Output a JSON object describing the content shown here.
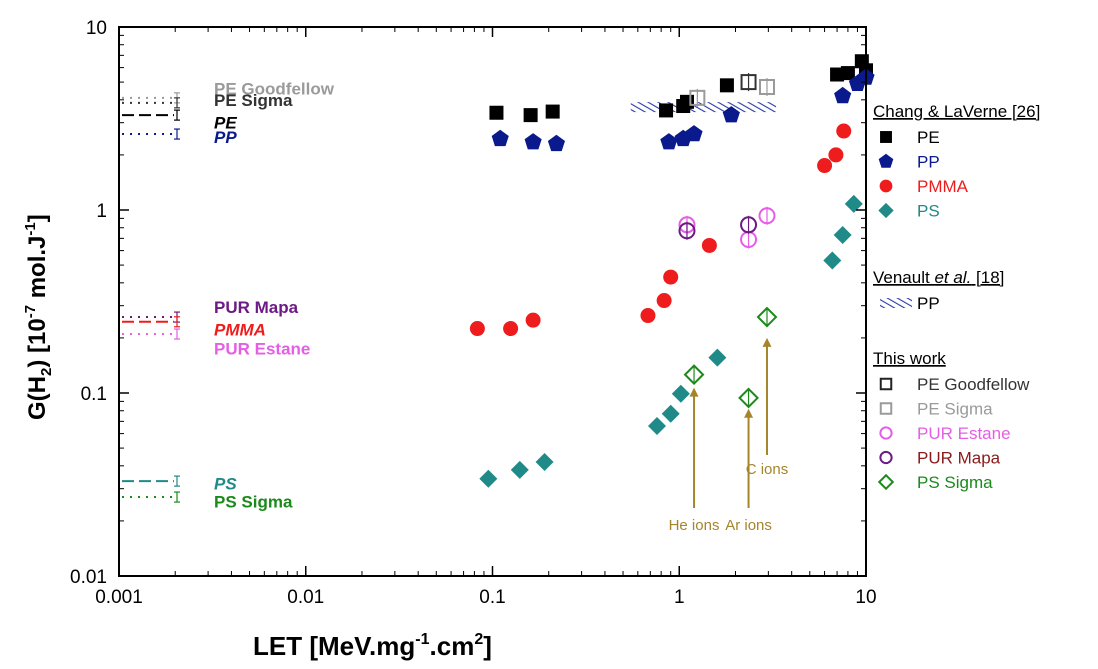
{
  "chart_data": {
    "type": "scatter",
    "x_scale": "log",
    "y_scale": "log",
    "xlim": [
      0.001,
      10
    ],
    "ylim": [
      0.01,
      10
    ],
    "x_ticks": [
      "0.001",
      "0.01",
      "0.1",
      "1",
      "10"
    ],
    "y_ticks": [
      "0.01",
      "0.1",
      "1",
      "10"
    ],
    "xlabel": {
      "main": "LET [MeV.mg",
      "sup1": "-1",
      "mid": ".cm",
      "sup2": "2",
      "end": "]"
    },
    "ylabel": {
      "pre": "G(H",
      "sub": "2",
      "mid": ") [10",
      "sup1": "-7",
      "post": " mol.J",
      "sup2": "-1",
      "end": "]"
    },
    "colors": {
      "PE": "#000000",
      "PP": "#0a1a8c",
      "PMMA": "#ee1c1c",
      "PS": "#1f8a87",
      "PE_Goodfellow": "#555555",
      "PE_Sigma": "#9a9a9a",
      "PUR_Estane": "#e55ee5",
      "PUR_Mapa": "#6d1a85",
      "PS_Sigma": "#1a8a1a",
      "ion": "#a5852c",
      "venault": "#2a3aa8"
    },
    "legend_groups": [
      {
        "title": "Chang & LaVerne [26]",
        "items": [
          {
            "label": "PE",
            "marker": "square-filled",
            "color": "#000000",
            "text_color": "#000000"
          },
          {
            "label": "PP",
            "marker": "pentagon-filled",
            "color": "#0a1a8c",
            "text_color": "#0a1a8c"
          },
          {
            "label": "PMMA",
            "marker": "circle-filled",
            "color": "#ee1c1c",
            "text_color": "#ee1c1c"
          },
          {
            "label": "PS",
            "marker": "diamond-filled",
            "color": "#1f8a87",
            "text_color": "#1f8a87"
          }
        ]
      },
      {
        "title_pre": "Venault ",
        "title_ital": "et al.",
        "title_post": " [18]",
        "items": [
          {
            "label": "PP",
            "marker": "hatch",
            "color": "#2a3aa8",
            "text_color": "#000000"
          }
        ]
      },
      {
        "title": "This work",
        "items": [
          {
            "label": "PE Goodfellow",
            "marker": "square-open",
            "color": "#222222",
            "text_color": "#333333"
          },
          {
            "label": "PE Sigma",
            "marker": "square-open",
            "color": "#9a9a9a",
            "text_color": "#9a9a9a"
          },
          {
            "label": "PUR Estane",
            "marker": "circle-open",
            "color": "#e55ee5",
            "text_color": "#e55ee5"
          },
          {
            "label": "PUR Mapa",
            "marker": "circle-open",
            "color": "#6d1a85",
            "text_color": "#8b1a1a"
          },
          {
            "label": "PS Sigma",
            "marker": "diamond-open",
            "color": "#1a8a1a",
            "text_color": "#1a8a1a"
          }
        ]
      }
    ],
    "series": [
      {
        "name": "PE",
        "marker": "square-filled",
        "color": "#000000",
        "x": [
          0.105,
          0.16,
          0.21,
          0.85,
          1.05,
          1.1,
          1.8,
          7.0,
          8.0,
          9.5,
          10.0
        ],
        "y": [
          3.4,
          3.3,
          3.45,
          3.5,
          3.7,
          3.9,
          4.8,
          5.5,
          5.6,
          6.5,
          5.8
        ]
      },
      {
        "name": "PP",
        "marker": "pentagon-filled",
        "color": "#0a1a8c",
        "x": [
          0.11,
          0.165,
          0.22,
          0.88,
          1.05,
          1.2,
          1.9,
          7.5,
          9.0,
          10.0
        ],
        "y": [
          2.45,
          2.35,
          2.3,
          2.35,
          2.45,
          2.6,
          3.3,
          4.2,
          4.9,
          5.3
        ]
      },
      {
        "name": "PMMA",
        "marker": "circle-filled",
        "color": "#ee1c1c",
        "x": [
          0.083,
          0.125,
          0.165,
          0.68,
          0.83,
          0.9,
          1.45,
          6.0,
          6.9,
          7.6
        ],
        "y": [
          0.225,
          0.225,
          0.25,
          0.265,
          0.32,
          0.43,
          0.64,
          1.75,
          2.0,
          2.7
        ]
      },
      {
        "name": "PS",
        "marker": "diamond-filled",
        "color": "#1f8a87",
        "x": [
          0.095,
          0.14,
          0.19,
          0.76,
          0.9,
          1.02,
          1.6,
          6.6,
          7.5,
          8.6
        ],
        "y": [
          0.034,
          0.038,
          0.042,
          0.066,
          0.077,
          0.099,
          0.156,
          0.53,
          0.73,
          1.08
        ]
      },
      {
        "name": "PE Goodfellow",
        "marker": "square-open",
        "color": "#333333",
        "x": [
          2.35
        ],
        "y": [
          5.0
        ]
      },
      {
        "name": "PE Sigma",
        "marker": "square-open",
        "color": "#9a9a9a",
        "x": [
          1.25,
          2.95
        ],
        "y": [
          4.1,
          4.7
        ]
      },
      {
        "name": "PUR Estane",
        "marker": "circle-open",
        "color": "#e55ee5",
        "x": [
          1.1,
          2.35,
          2.95
        ],
        "y": [
          0.83,
          0.69,
          0.93
        ]
      },
      {
        "name": "PUR Mapa",
        "marker": "circle-open",
        "color": "#6d1a85",
        "x": [
          1.1,
          2.35
        ],
        "y": [
          0.77,
          0.83
        ]
      },
      {
        "name": "PS Sigma",
        "marker": "diamond-open",
        "color": "#1a8a1a",
        "x": [
          1.2,
          2.35,
          2.95
        ],
        "y": [
          0.126,
          0.094,
          0.26
        ]
      }
    ],
    "venault_band": {
      "x_range": [
        0.55,
        3.3
      ],
      "y": 3.65
    },
    "ref_lines": [
      {
        "label": "PE Goodfellow",
        "y": 4.1,
        "color": "#9a9a9a",
        "style": "dotted"
      },
      {
        "label": "PE Sigma",
        "y": 3.85,
        "color": "#333333",
        "style": "dotted"
      },
      {
        "label": "PE",
        "y": 3.3,
        "color": "#000000",
        "style": "dashed"
      },
      {
        "label": "PP",
        "y": 2.6,
        "color": "#0a1a8c",
        "style": "dotted"
      },
      {
        "label": "PUR Mapa",
        "y": 0.26,
        "color": "#6d1a85",
        "style": "dotted"
      },
      {
        "label": "PMMA",
        "y": 0.245,
        "color": "#ee1c1c",
        "style": "dashed"
      },
      {
        "label": "PUR Estane",
        "y": 0.21,
        "color": "#e55ee5",
        "style": "dotted"
      },
      {
        "label": "PS",
        "y": 0.033,
        "color": "#1f8a87",
        "style": "dashed"
      },
      {
        "label": "PS Sigma",
        "y": 0.027,
        "color": "#1a8a1a",
        "style": "dotted"
      }
    ],
    "left_labels": [
      {
        "text": "PE Goodfellow",
        "y": 4.6,
        "color": "#9a9a9a",
        "italic": false
      },
      {
        "text": "PE Sigma",
        "y": 4.0,
        "color": "#333333",
        "italic": false
      },
      {
        "text": "PE",
        "y": 3.0,
        "color": "#000000",
        "italic": true
      },
      {
        "text": "PP",
        "y": 2.5,
        "color": "#0a1a8c",
        "italic": true
      },
      {
        "text": "PUR Mapa",
        "y": 0.295,
        "color": "#6d1a85",
        "italic": false
      },
      {
        "text": "PMMA",
        "y": 0.222,
        "color": "#ee1c1c",
        "italic": true
      },
      {
        "text": "PUR Estane",
        "y": 0.175,
        "color": "#e55ee5",
        "italic": false
      },
      {
        "text": "PS",
        "y": 0.032,
        "color": "#1f8a87",
        "italic": true
      },
      {
        "text": "PS Sigma",
        "y": 0.0255,
        "color": "#1a8a1a",
        "italic": false
      }
    ],
    "annotations": [
      {
        "text": "He ions",
        "x": 1.2,
        "arrow_to_y": 0.107,
        "color": "#a5852c"
      },
      {
        "text": "Ar ions",
        "x": 2.35,
        "arrow_to_y": 0.082,
        "color": "#a5852c"
      },
      {
        "text": "C ions",
        "x": 2.95,
        "arrow_to_y": 0.2,
        "color": "#a5852c"
      }
    ]
  }
}
